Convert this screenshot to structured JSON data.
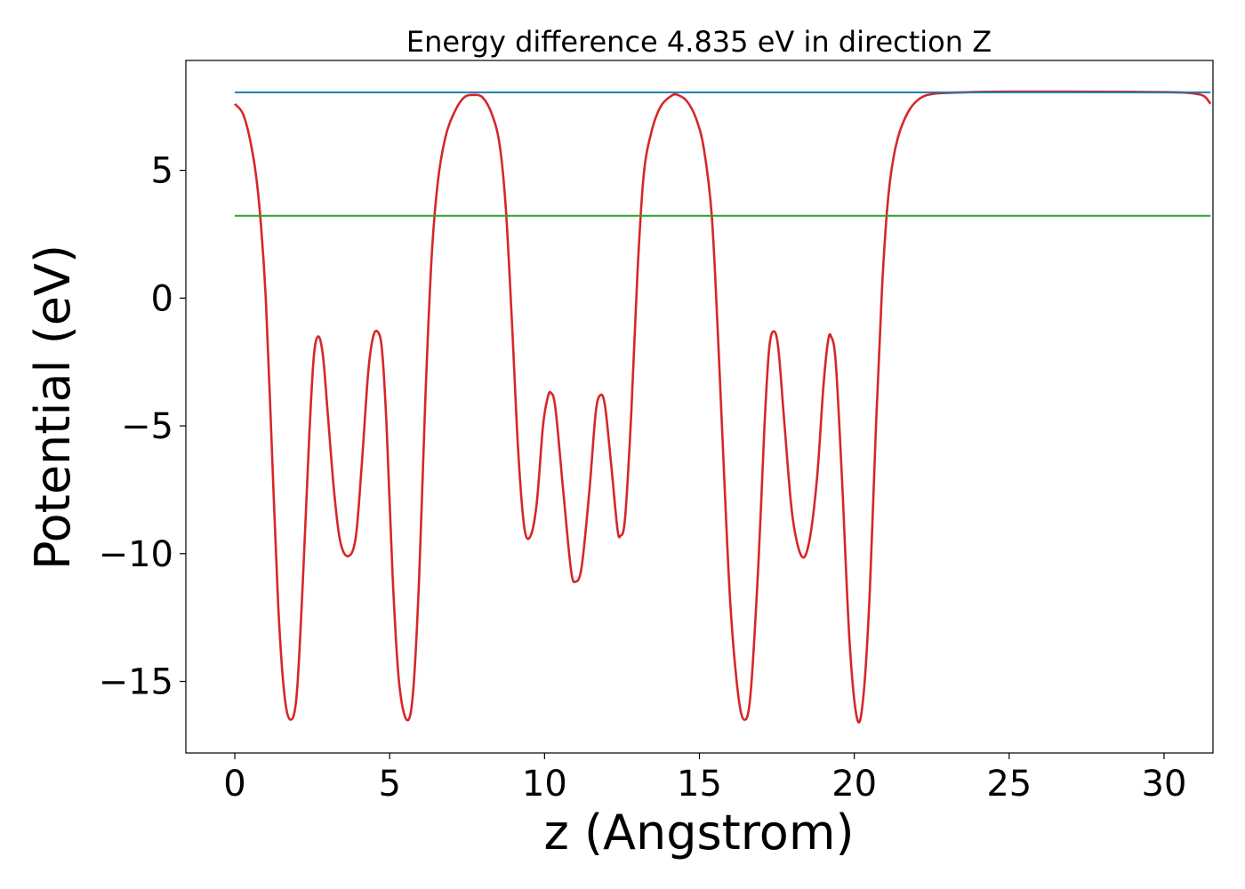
{
  "chart_data": {
    "type": "line",
    "title": "Energy difference 4.835 eV in direction Z",
    "xlabel": "z (Angstrom)",
    "ylabel": "Potential (eV)",
    "xlim": [
      -1.58,
      31.58
    ],
    "ylim": [
      -17.8,
      9.3
    ],
    "xticks": [
      0,
      5,
      10,
      15,
      20,
      25,
      30
    ],
    "xtick_labels": [
      "0",
      "5",
      "10",
      "15",
      "20",
      "25",
      "30"
    ],
    "yticks": [
      5,
      0,
      -5,
      -10,
      -15
    ],
    "ytick_labels": [
      "5",
      "0",
      "−5",
      "−10",
      "−15"
    ],
    "grid": false,
    "series": [
      {
        "color": "#d62728",
        "kind": "curve",
        "points": [
          [
            0,
            7.6
          ],
          [
            0.3,
            7.1
          ],
          [
            0.6,
            5.5
          ],
          [
            0.8,
            3.5
          ],
          [
            1.0,
            0.0
          ],
          [
            1.2,
            -6.0
          ],
          [
            1.4,
            -12.0
          ],
          [
            1.6,
            -15.5
          ],
          [
            1.8,
            -16.5
          ],
          [
            2.0,
            -15.5
          ],
          [
            2.2,
            -11.0
          ],
          [
            2.4,
            -5.5
          ],
          [
            2.55,
            -2.3
          ],
          [
            2.7,
            -1.5
          ],
          [
            2.85,
            -2.3
          ],
          [
            3.0,
            -4.5
          ],
          [
            3.2,
            -7.5
          ],
          [
            3.4,
            -9.5
          ],
          [
            3.65,
            -10.1
          ],
          [
            3.9,
            -9.4
          ],
          [
            4.1,
            -6.5
          ],
          [
            4.3,
            -3.0
          ],
          [
            4.45,
            -1.6
          ],
          [
            4.6,
            -1.3
          ],
          [
            4.75,
            -2.0
          ],
          [
            4.9,
            -5.0
          ],
          [
            5.1,
            -11.0
          ],
          [
            5.3,
            -15.0
          ],
          [
            5.55,
            -16.5
          ],
          [
            5.75,
            -15.5
          ],
          [
            5.95,
            -11.0
          ],
          [
            6.15,
            -4.0
          ],
          [
            6.35,
            1.5
          ],
          [
            6.55,
            4.5
          ],
          [
            6.8,
            6.3
          ],
          [
            7.1,
            7.3
          ],
          [
            7.4,
            7.85
          ],
          [
            7.7,
            7.95
          ],
          [
            8.0,
            7.85
          ],
          [
            8.3,
            7.2
          ],
          [
            8.55,
            6.0
          ],
          [
            8.75,
            3.5
          ],
          [
            8.95,
            -1.0
          ],
          [
            9.15,
            -6.0
          ],
          [
            9.35,
            -9.0
          ],
          [
            9.55,
            -9.3
          ],
          [
            9.75,
            -8.0
          ],
          [
            9.95,
            -5.0
          ],
          [
            10.1,
            -3.9
          ],
          [
            10.2,
            -3.7
          ],
          [
            10.35,
            -4.3
          ],
          [
            10.6,
            -7.5
          ],
          [
            10.85,
            -10.6
          ],
          [
            11.0,
            -11.1
          ],
          [
            11.2,
            -10.5
          ],
          [
            11.45,
            -7.5
          ],
          [
            11.65,
            -4.5
          ],
          [
            11.8,
            -3.8
          ],
          [
            11.95,
            -4.2
          ],
          [
            12.15,
            -6.5
          ],
          [
            12.35,
            -9.0
          ],
          [
            12.45,
            -9.3
          ],
          [
            12.6,
            -8.6
          ],
          [
            12.8,
            -4.5
          ],
          [
            13.0,
            1.0
          ],
          [
            13.2,
            4.8
          ],
          [
            13.45,
            6.5
          ],
          [
            13.75,
            7.5
          ],
          [
            14.1,
            7.92
          ],
          [
            14.3,
            7.95
          ],
          [
            14.6,
            7.7
          ],
          [
            14.9,
            7.0
          ],
          [
            15.15,
            5.8
          ],
          [
            15.4,
            3.2
          ],
          [
            15.6,
            -1.5
          ],
          [
            15.8,
            -7.0
          ],
          [
            16.0,
            -12.0
          ],
          [
            16.25,
            -15.5
          ],
          [
            16.45,
            -16.5
          ],
          [
            16.65,
            -15.5
          ],
          [
            16.9,
            -10.5
          ],
          [
            17.1,
            -5.0
          ],
          [
            17.25,
            -2.0
          ],
          [
            17.4,
            -1.3
          ],
          [
            17.55,
            -2.0
          ],
          [
            17.75,
            -5.0
          ],
          [
            18.0,
            -8.5
          ],
          [
            18.3,
            -10.1
          ],
          [
            18.55,
            -9.5
          ],
          [
            18.8,
            -7.0
          ],
          [
            19.0,
            -3.5
          ],
          [
            19.15,
            -1.7
          ],
          [
            19.25,
            -1.5
          ],
          [
            19.4,
            -2.5
          ],
          [
            19.6,
            -7.0
          ],
          [
            19.85,
            -13.5
          ],
          [
            20.1,
            -16.5
          ],
          [
            20.3,
            -15.5
          ],
          [
            20.5,
            -11.5
          ],
          [
            20.7,
            -5.0
          ],
          [
            20.9,
            0.5
          ],
          [
            21.1,
            4.0
          ],
          [
            21.35,
            6.0
          ],
          [
            21.7,
            7.2
          ],
          [
            22.1,
            7.8
          ],
          [
            22.6,
            8.0
          ],
          [
            23.5,
            8.05
          ],
          [
            25.0,
            8.08
          ],
          [
            27.0,
            8.08
          ],
          [
            29.0,
            8.07
          ],
          [
            30.5,
            8.05
          ],
          [
            31.0,
            8.0
          ],
          [
            31.3,
            7.9
          ],
          [
            31.5,
            7.6
          ]
        ]
      },
      {
        "color": "#1f77b4",
        "kind": "hline",
        "y": 8.05,
        "x_range": [
          0,
          31.5
        ]
      },
      {
        "color": "#2ca02c",
        "kind": "hline",
        "y": 3.22,
        "x_range": [
          0,
          31.5
        ]
      }
    ]
  }
}
